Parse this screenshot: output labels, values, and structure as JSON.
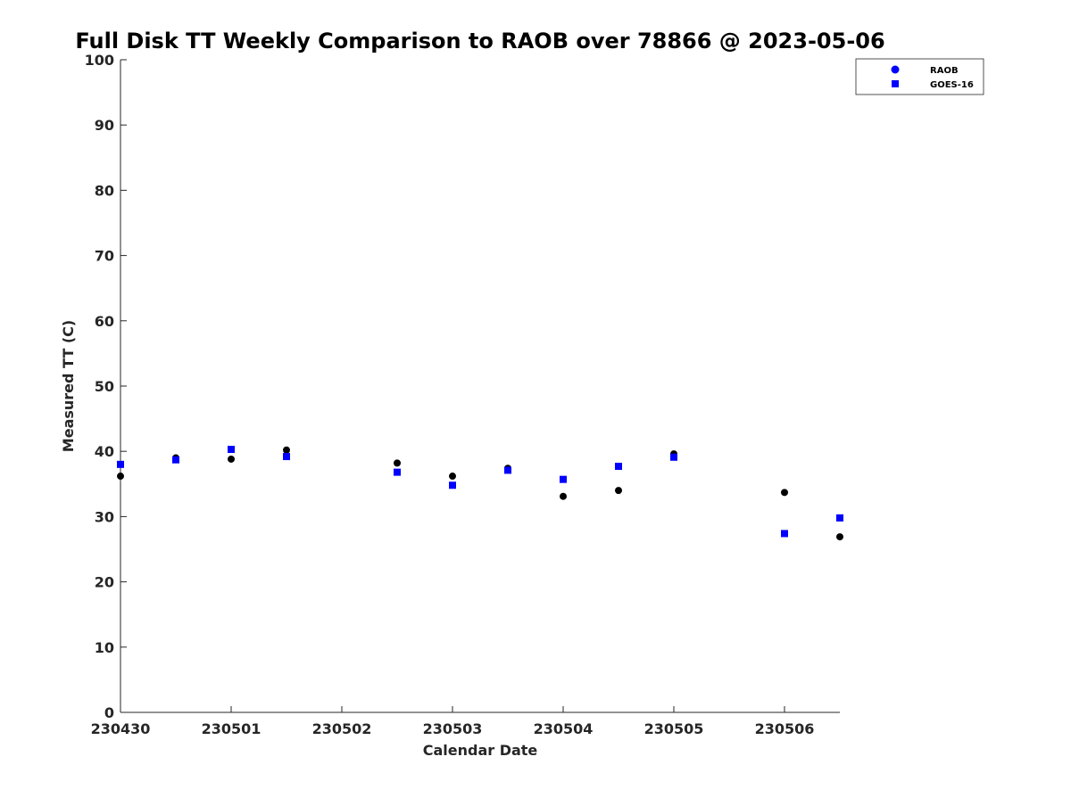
{
  "chart_data": {
    "type": "scatter",
    "title": "Full Disk TT Weekly Comparison to RAOB over 78866 @ 2023-05-06",
    "xlabel": "Calendar Date",
    "ylabel": "Measured TT (C)",
    "xlim": [
      "2023-04-30",
      "2023-05-06 12:00"
    ],
    "ylim": [
      0,
      100
    ],
    "x_tick_labels": [
      "230430",
      "230501",
      "230502",
      "230503",
      "230504",
      "230505",
      "230506"
    ],
    "y_tick_labels": [
      "0",
      "10",
      "20",
      "30",
      "40",
      "50",
      "60",
      "70",
      "80",
      "90",
      "100"
    ],
    "y_ticks": [
      0,
      10,
      20,
      30,
      40,
      50,
      60,
      70,
      80,
      90,
      100
    ],
    "grid": false,
    "legend_position": "top-right",
    "series": [
      {
        "name": "RAOB",
        "marker": "circle",
        "marker_color": "#000000",
        "legend_color": "#0000ff",
        "x": [
          "2023-04-30 00:00",
          "2023-04-30 12:00",
          "2023-05-01 00:00",
          "2023-05-01 12:00",
          "2023-05-02 12:00",
          "2023-05-03 00:00",
          "2023-05-03 12:00",
          "2023-05-04 00:00",
          "2023-05-04 12:00",
          "2023-05-05 00:00",
          "2023-05-06 00:00",
          "2023-05-06 12:00"
        ],
        "y": [
          36.2,
          39.0,
          38.8,
          40.2,
          38.2,
          36.2,
          37.4,
          33.1,
          34.0,
          39.6,
          33.7,
          26.9
        ]
      },
      {
        "name": "GOES-16",
        "marker": "square",
        "marker_color": "#0000ff",
        "legend_color": "#0000ff",
        "x": [
          "2023-04-30 00:00",
          "2023-04-30 12:00",
          "2023-05-01 00:00",
          "2023-05-01 12:00",
          "2023-05-02 12:00",
          "2023-05-03 00:00",
          "2023-05-03 12:00",
          "2023-05-04 00:00",
          "2023-05-04 12:00",
          "2023-05-05 00:00",
          "2023-05-06 00:00",
          "2023-05-06 12:00"
        ],
        "y": [
          38.0,
          38.7,
          40.3,
          39.2,
          36.8,
          34.8,
          37.1,
          35.7,
          37.7,
          39.1,
          27.4,
          29.8
        ]
      }
    ]
  }
}
